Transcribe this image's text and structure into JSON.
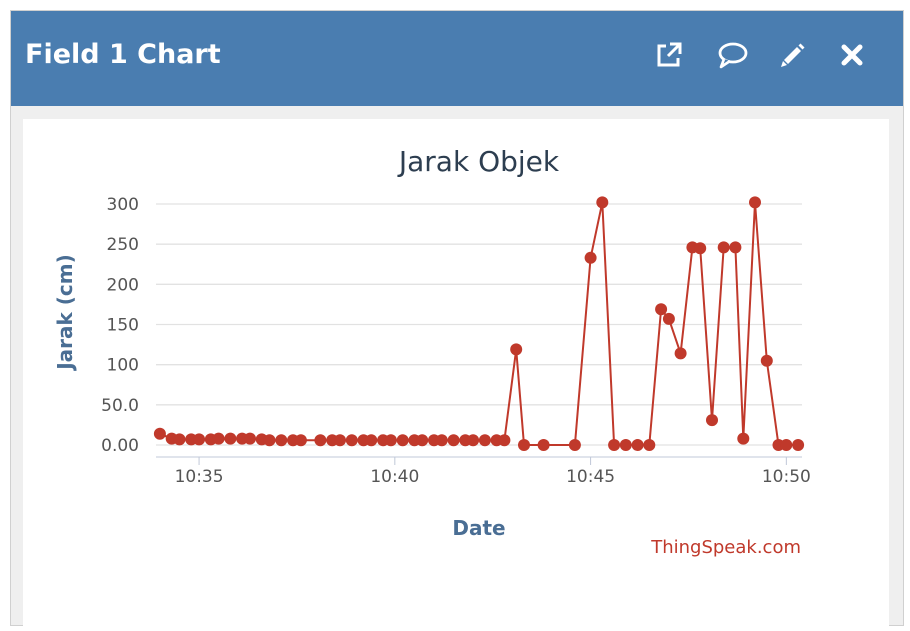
{
  "header": {
    "title": "Field 1 Chart",
    "icons": [
      "external-link-icon",
      "comment-icon",
      "pencil-icon",
      "close-icon"
    ]
  },
  "colors": {
    "header_bg": "#4a7db0",
    "series": "#c0392b",
    "axis_label": "#4a6e94"
  },
  "footer": {
    "credit": "ThingSpeak.com"
  },
  "chart_data": {
    "type": "line",
    "title": "Jarak Objek",
    "xlabel": "Date",
    "ylabel": "Jarak (cm)",
    "x_ticks": [
      "10:35",
      "10:40",
      "10:45",
      "10:50"
    ],
    "x_tick_minutes": [
      35,
      40,
      45,
      50
    ],
    "xlim": [
      "10:33.9",
      "10:50.4"
    ],
    "y_ticks": [
      "0.00",
      "50.0",
      "100",
      "150",
      "200",
      "250",
      "300"
    ],
    "y_tick_values": [
      0,
      50,
      100,
      150,
      200,
      250,
      300
    ],
    "ylim": [
      0,
      300
    ],
    "grid": true,
    "series": [
      {
        "x": [
          "10:34.0",
          "10:34.3",
          "10:34.5",
          "10:34.8",
          "10:35.0",
          "10:35.3",
          "10:35.5",
          "10:35.8",
          "10:36.1",
          "10:36.3",
          "10:36.6",
          "10:36.8",
          "10:37.1",
          "10:37.4",
          "10:37.6",
          "10:38.1",
          "10:38.4",
          "10:38.6",
          "10:38.9",
          "10:39.2",
          "10:39.4",
          "10:39.7",
          "10:39.9",
          "10:40.2",
          "10:40.5",
          "10:40.7",
          "10:41.0",
          "10:41.2",
          "10:41.5",
          "10:41.8",
          "10:42.0",
          "10:42.3",
          "10:42.6",
          "10:42.8",
          "10:43.1",
          "10:43.3",
          "10:43.8",
          "10:44.6",
          "10:45.0",
          "10:45.3",
          "10:45.6",
          "10:45.9",
          "10:46.2",
          "10:46.5",
          "10:46.8",
          "10:47.0",
          "10:47.3",
          "10:47.6",
          "10:47.8",
          "10:48.1",
          "10:48.4",
          "10:48.7",
          "10:48.9",
          "10:49.2",
          "10:49.5",
          "10:49.8",
          "10:50.0",
          "10:50.3"
        ],
        "y": [
          14,
          8,
          7,
          7,
          7,
          7,
          8,
          8,
          8,
          8,
          7,
          6,
          6,
          6,
          6,
          6,
          6,
          6,
          6,
          6,
          6,
          6,
          6,
          6,
          6,
          6,
          6,
          6,
          6,
          6,
          6,
          6,
          6,
          6,
          119,
          0,
          0,
          0,
          233,
          302,
          0,
          0,
          0,
          0,
          169,
          157,
          114,
          246,
          245,
          31,
          246,
          246,
          8,
          302,
          105,
          0,
          0,
          0
        ]
      }
    ]
  }
}
